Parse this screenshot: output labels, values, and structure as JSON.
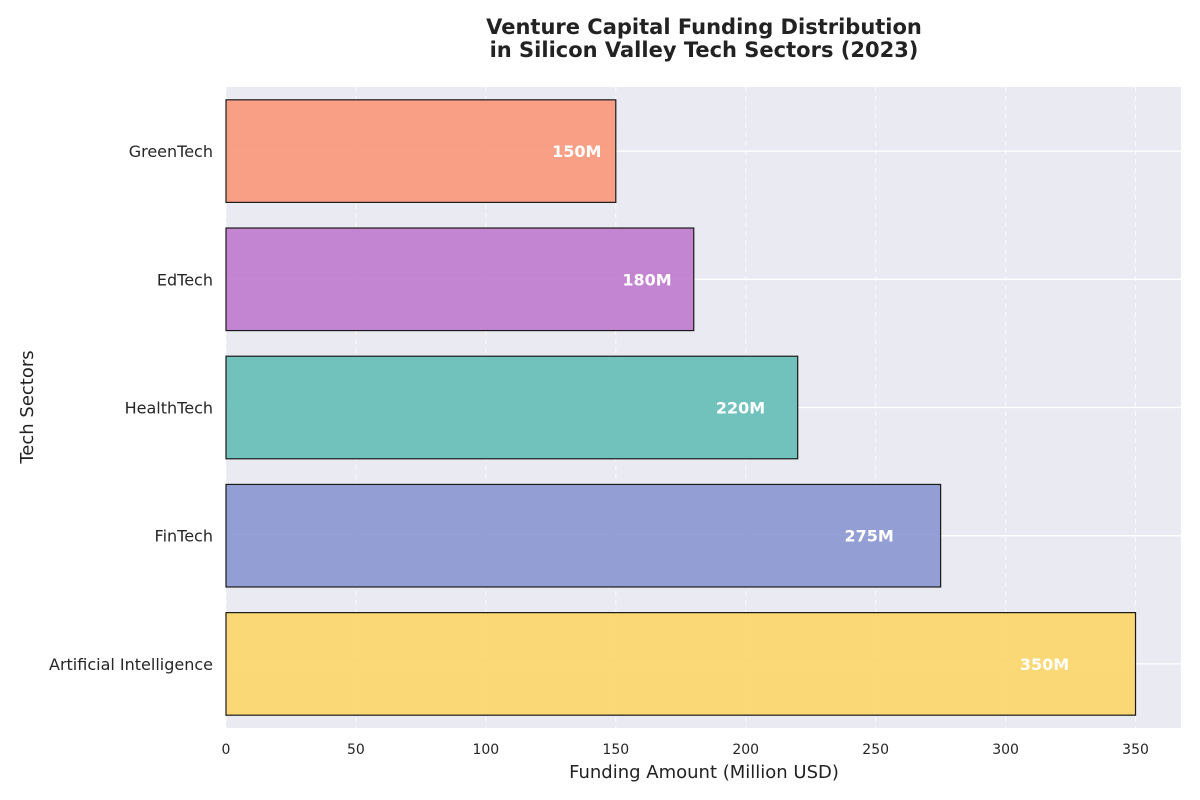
{
  "chart_data": {
    "type": "bar",
    "orientation": "horizontal",
    "title_lines": [
      "Venture Capital Funding Distribution",
      "in Silicon Valley Tech Sectors (2023)"
    ],
    "xlabel": "Funding Amount (Million USD)",
    "ylabel": "Tech Sectors",
    "categories": [
      "Artificial Intelligence",
      "FinTech",
      "HealthTech",
      "EdTech",
      "GreenTech"
    ],
    "values": [
      350,
      275,
      220,
      180,
      150
    ],
    "value_labels": [
      "350M",
      "275M",
      "220M",
      "180M",
      "150M"
    ],
    "colors": [
      "#FCD667",
      "#8A96D0",
      "#64BDB6",
      "#BF7ACD",
      "#FB977A"
    ],
    "xlim": [
      0,
      367.5
    ],
    "xticks": [
      0,
      50,
      100,
      150,
      200,
      250,
      300,
      350
    ],
    "xtick_labels": [
      "0",
      "50",
      "100",
      "150",
      "200",
      "250",
      "300",
      "350"
    ],
    "grid": true,
    "legend": "none",
    "background": "#EAEAF2"
  }
}
